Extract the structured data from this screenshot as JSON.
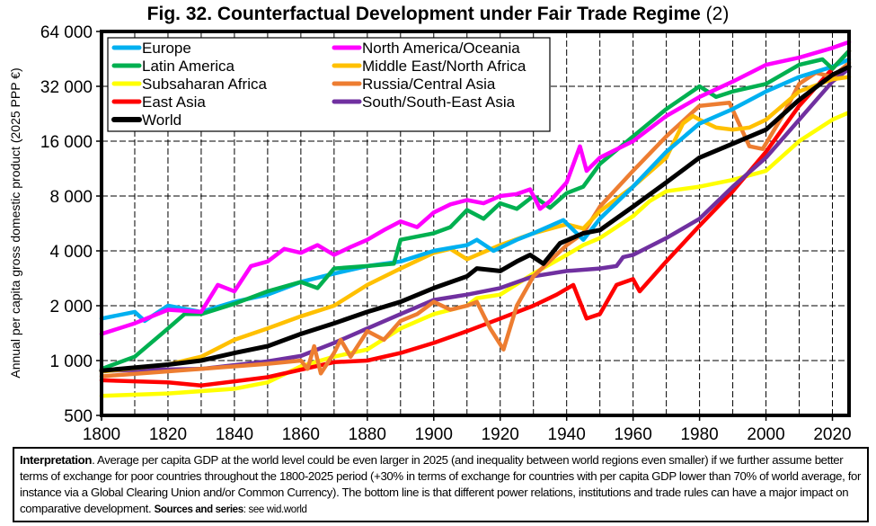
{
  "title": {
    "main": "Fig. 32. Counterfactual Development under Fair Trade Regime",
    "suffix": "(2)"
  },
  "note": {
    "lead": "Interpretation",
    "text": ". Average per capita GDP at the world level could be even larger in 2025 (and inequality between world regions even smaller) if we further assume better terms of exchange for poor countries throughout the 1800-2025 period (+30% in terms of exchange for countries with per capita GDP lower than 70% of world average, for instance via a Global Clearing Union and/or Common Currency). The bottom line is that different power relations, institutions and trade rules can have a major impact on comparative development. ",
    "sources_label": "Sources and series",
    "sources_text": ": see wid.world"
  },
  "chart_data": {
    "type": "line",
    "title": "Fig. 32. Counterfactual Development under Fair Trade Regime (2)",
    "xlabel": "",
    "ylabel": "Annual per capita gross domestic product (2025 PPP €)",
    "xlim": [
      1800,
      2025
    ],
    "ylim": [
      500,
      64000
    ],
    "yscale": "log2",
    "grid": true,
    "legend_position": "top-left",
    "xticks": [
      1800,
      1820,
      1840,
      1860,
      1880,
      1900,
      1920,
      1940,
      1960,
      1980,
      2000,
      2020
    ],
    "xtick_labels": [
      "1800",
      "1820",
      "1840",
      "1860",
      "1880",
      "1900",
      "1920",
      "1940",
      "1960",
      "1980",
      "2000",
      "2020"
    ],
    "yticks": [
      500,
      1000,
      2000,
      4000,
      8000,
      16000,
      32000,
      64000
    ],
    "ytick_labels": [
      "500",
      "1 000",
      "2 000",
      "4 000",
      "8 000",
      "16 000",
      "32 000",
      "64 000"
    ],
    "series": [
      {
        "name": "Europe",
        "color": "#00b0f0",
        "points": [
          [
            1800,
            1700
          ],
          [
            1810,
            1850
          ],
          [
            1813,
            1650
          ],
          [
            1820,
            2000
          ],
          [
            1830,
            1850
          ],
          [
            1840,
            2100
          ],
          [
            1850,
            2300
          ],
          [
            1860,
            2700
          ],
          [
            1870,
            3000
          ],
          [
            1880,
            3300
          ],
          [
            1890,
            3500
          ],
          [
            1900,
            4000
          ],
          [
            1910,
            4300
          ],
          [
            1913,
            4600
          ],
          [
            1918,
            4000
          ],
          [
            1925,
            4600
          ],
          [
            1930,
            5000
          ],
          [
            1939,
            5900
          ],
          [
            1945,
            4600
          ],
          [
            1950,
            6000
          ],
          [
            1960,
            9000
          ],
          [
            1970,
            14000
          ],
          [
            1980,
            20000
          ],
          [
            1990,
            24000
          ],
          [
            2000,
            30000
          ],
          [
            2010,
            36000
          ],
          [
            2020,
            41000
          ],
          [
            2025,
            45000
          ]
        ]
      },
      {
        "name": "Latin America",
        "color": "#00b050",
        "points": [
          [
            1800,
            900
          ],
          [
            1810,
            1050
          ],
          [
            1820,
            1500
          ],
          [
            1825,
            1800
          ],
          [
            1830,
            1800
          ],
          [
            1840,
            2050
          ],
          [
            1850,
            2400
          ],
          [
            1860,
            2700
          ],
          [
            1865,
            2500
          ],
          [
            1870,
            3200
          ],
          [
            1880,
            3300
          ],
          [
            1888,
            3400
          ],
          [
            1890,
            4600
          ],
          [
            1900,
            5000
          ],
          [
            1905,
            5400
          ],
          [
            1910,
            6700
          ],
          [
            1915,
            6000
          ],
          [
            1920,
            7300
          ],
          [
            1925,
            6800
          ],
          [
            1930,
            8000
          ],
          [
            1935,
            6900
          ],
          [
            1940,
            8300
          ],
          [
            1945,
            9000
          ],
          [
            1950,
            12000
          ],
          [
            1960,
            17000
          ],
          [
            1970,
            24000
          ],
          [
            1980,
            32000
          ],
          [
            1985,
            28000
          ],
          [
            1990,
            30000
          ],
          [
            2000,
            33000
          ],
          [
            2010,
            42000
          ],
          [
            2017,
            45000
          ],
          [
            2020,
            40000
          ],
          [
            2025,
            50000
          ]
        ]
      },
      {
        "name": "Subsaharan Africa",
        "color": "#ffff00",
        "points": [
          [
            1800,
            640
          ],
          [
            1820,
            660
          ],
          [
            1840,
            700
          ],
          [
            1850,
            760
          ],
          [
            1860,
            930
          ],
          [
            1870,
            1050
          ],
          [
            1880,
            1150
          ],
          [
            1890,
            1500
          ],
          [
            1900,
            1800
          ],
          [
            1910,
            2000
          ],
          [
            1913,
            2200
          ],
          [
            1920,
            2300
          ],
          [
            1930,
            3000
          ],
          [
            1940,
            3800
          ],
          [
            1945,
            4300
          ],
          [
            1950,
            4700
          ],
          [
            1960,
            6200
          ],
          [
            1965,
            7500
          ],
          [
            1970,
            8500
          ],
          [
            1980,
            9000
          ],
          [
            1990,
            9800
          ],
          [
            2000,
            11000
          ],
          [
            2010,
            16000
          ],
          [
            2020,
            21000
          ],
          [
            2025,
            23000
          ]
        ]
      },
      {
        "name": "East Asia",
        "color": "#ff0000",
        "points": [
          [
            1800,
            780
          ],
          [
            1820,
            760
          ],
          [
            1830,
            730
          ],
          [
            1850,
            810
          ],
          [
            1870,
            980
          ],
          [
            1880,
            1000
          ],
          [
            1890,
            1100
          ],
          [
            1900,
            1250
          ],
          [
            1910,
            1450
          ],
          [
            1920,
            1700
          ],
          [
            1930,
            2000
          ],
          [
            1937,
            2300
          ],
          [
            1942,
            2600
          ],
          [
            1946,
            1700
          ],
          [
            1950,
            1800
          ],
          [
            1955,
            2600
          ],
          [
            1960,
            2800
          ],
          [
            1962,
            2400
          ],
          [
            1970,
            3500
          ],
          [
            1980,
            5500
          ],
          [
            1990,
            8500
          ],
          [
            2000,
            14000
          ],
          [
            2010,
            25000
          ],
          [
            2020,
            40000
          ],
          [
            2025,
            50000
          ]
        ]
      },
      {
        "name": "World",
        "color": "#000000",
        "points": [
          [
            1800,
            880
          ],
          [
            1820,
            950
          ],
          [
            1830,
            1000
          ],
          [
            1840,
            1100
          ],
          [
            1850,
            1200
          ],
          [
            1860,
            1400
          ],
          [
            1870,
            1600
          ],
          [
            1880,
            1850
          ],
          [
            1890,
            2100
          ],
          [
            1900,
            2500
          ],
          [
            1910,
            2900
          ],
          [
            1913,
            3200
          ],
          [
            1920,
            3100
          ],
          [
            1925,
            3500
          ],
          [
            1929,
            3800
          ],
          [
            1933,
            3400
          ],
          [
            1938,
            4400
          ],
          [
            1945,
            5000
          ],
          [
            1950,
            5200
          ],
          [
            1960,
            7000
          ],
          [
            1970,
            9500
          ],
          [
            1980,
            13000
          ],
          [
            1990,
            15500
          ],
          [
            2000,
            18500
          ],
          [
            2010,
            27000
          ],
          [
            2020,
            37000
          ],
          [
            2025,
            41000
          ]
        ]
      },
      {
        "name": "North America/Oceania",
        "color": "#ff00ff",
        "points": [
          [
            1800,
            1400
          ],
          [
            1810,
            1600
          ],
          [
            1820,
            1900
          ],
          [
            1830,
            1850
          ],
          [
            1835,
            2600
          ],
          [
            1840,
            2400
          ],
          [
            1845,
            3300
          ],
          [
            1850,
            3500
          ],
          [
            1855,
            4100
          ],
          [
            1860,
            3900
          ],
          [
            1865,
            4300
          ],
          [
            1870,
            3800
          ],
          [
            1875,
            4200
          ],
          [
            1880,
            4600
          ],
          [
            1885,
            5200
          ],
          [
            1890,
            5800
          ],
          [
            1895,
            5400
          ],
          [
            1900,
            6500
          ],
          [
            1905,
            7200
          ],
          [
            1910,
            7600
          ],
          [
            1915,
            7300
          ],
          [
            1920,
            8000
          ],
          [
            1925,
            8200
          ],
          [
            1929,
            8700
          ],
          [
            1932,
            6800
          ],
          [
            1935,
            7500
          ],
          [
            1940,
            9500
          ],
          [
            1944,
            15000
          ],
          [
            1946,
            11000
          ],
          [
            1950,
            13000
          ],
          [
            1960,
            16000
          ],
          [
            1970,
            22000
          ],
          [
            1980,
            28000
          ],
          [
            1990,
            34000
          ],
          [
            2000,
            42000
          ],
          [
            2010,
            46000
          ],
          [
            2020,
            52000
          ],
          [
            2025,
            56000
          ]
        ]
      },
      {
        "name": "Middle East/North Africa",
        "color": "#ffc000",
        "points": [
          [
            1800,
            870
          ],
          [
            1820,
            950
          ],
          [
            1830,
            1050
          ],
          [
            1840,
            1300
          ],
          [
            1850,
            1500
          ],
          [
            1860,
            1750
          ],
          [
            1870,
            2000
          ],
          [
            1880,
            2600
          ],
          [
            1890,
            3200
          ],
          [
            1900,
            3900
          ],
          [
            1905,
            4100
          ],
          [
            1910,
            3600
          ],
          [
            1920,
            4300
          ],
          [
            1930,
            5000
          ],
          [
            1940,
            5600
          ],
          [
            1945,
            5300
          ],
          [
            1950,
            6600
          ],
          [
            1960,
            9000
          ],
          [
            1970,
            13000
          ],
          [
            1975,
            20000
          ],
          [
            1978,
            22000
          ],
          [
            1980,
            21000
          ],
          [
            1985,
            19000
          ],
          [
            1990,
            18500
          ],
          [
            1995,
            19000
          ],
          [
            2000,
            21000
          ],
          [
            2010,
            30000
          ],
          [
            2020,
            35000
          ],
          [
            2025,
            36000
          ]
        ]
      },
      {
        "name": "Russia/Central Asia",
        "color": "#ed7d31",
        "points": [
          [
            1800,
            820
          ],
          [
            1830,
            900
          ],
          [
            1850,
            960
          ],
          [
            1860,
            1000
          ],
          [
            1862,
            900
          ],
          [
            1864,
            1200
          ],
          [
            1866,
            850
          ],
          [
            1870,
            1100
          ],
          [
            1872,
            1300
          ],
          [
            1875,
            1050
          ],
          [
            1880,
            1450
          ],
          [
            1885,
            1300
          ],
          [
            1890,
            1650
          ],
          [
            1895,
            1800
          ],
          [
            1900,
            2100
          ],
          [
            1905,
            1900
          ],
          [
            1910,
            2000
          ],
          [
            1913,
            2100
          ],
          [
            1917,
            1500
          ],
          [
            1921,
            1150
          ],
          [
            1925,
            2000
          ],
          [
            1930,
            2900
          ],
          [
            1940,
            4300
          ],
          [
            1945,
            5000
          ],
          [
            1950,
            7000
          ],
          [
            1960,
            11000
          ],
          [
            1970,
            17000
          ],
          [
            1980,
            25000
          ],
          [
            1989,
            26000
          ],
          [
            1995,
            15000
          ],
          [
            1999,
            14500
          ],
          [
            2005,
            22000
          ],
          [
            2010,
            33000
          ],
          [
            2015,
            38000
          ],
          [
            2020,
            36000
          ],
          [
            2025,
            43000
          ]
        ]
      },
      {
        "name": "South/South-East Asia",
        "color": "#7030a0",
        "points": [
          [
            1800,
            880
          ],
          [
            1830,
            900
          ],
          [
            1850,
            990
          ],
          [
            1860,
            1060
          ],
          [
            1870,
            1250
          ],
          [
            1880,
            1500
          ],
          [
            1890,
            1800
          ],
          [
            1900,
            2150
          ],
          [
            1910,
            2300
          ],
          [
            1920,
            2500
          ],
          [
            1930,
            2900
          ],
          [
            1940,
            3100
          ],
          [
            1950,
            3200
          ],
          [
            1955,
            3300
          ],
          [
            1957,
            3700
          ],
          [
            1960,
            3800
          ],
          [
            1970,
            4700
          ],
          [
            1980,
            6000
          ],
          [
            1990,
            9000
          ],
          [
            2000,
            13000
          ],
          [
            2010,
            21000
          ],
          [
            2020,
            34000
          ],
          [
            2025,
            40000
          ]
        ]
      }
    ],
    "legend_order": [
      "Europe",
      "North America/Oceania",
      "Latin America",
      "Middle East/North Africa",
      "Subsaharan Africa",
      "Russia/Central Asia",
      "East Asia",
      "South/South-East Asia",
      "World"
    ]
  }
}
